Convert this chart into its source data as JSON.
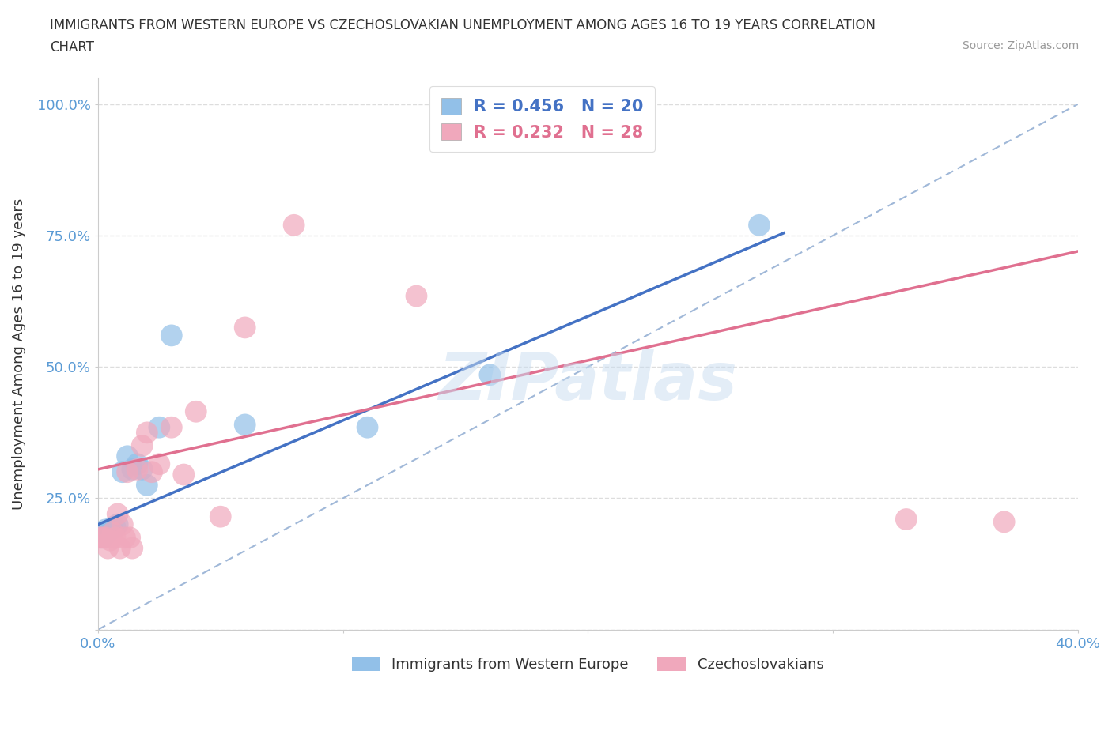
{
  "title_line1": "IMMIGRANTS FROM WESTERN EUROPE VS CZECHOSLOVAKIAN UNEMPLOYMENT AMONG AGES 16 TO 19 YEARS CORRELATION",
  "title_line2": "CHART",
  "source": "Source: ZipAtlas.com",
  "ylabel": "Unemployment Among Ages 16 to 19 years",
  "xlim": [
    0.0,
    0.4
  ],
  "ylim": [
    0.0,
    1.05
  ],
  "xticks": [
    0.0,
    0.1,
    0.2,
    0.3,
    0.4
  ],
  "xticklabels": [
    "0.0%",
    "",
    "",
    "",
    "40.0%"
  ],
  "yticks": [
    0.0,
    0.25,
    0.5,
    0.75,
    1.0
  ],
  "yticklabels": [
    "",
    "25.0%",
    "50.0%",
    "75.0%",
    "100.0%"
  ],
  "blue_color": "#92C0E8",
  "pink_color": "#F0A8BC",
  "blue_line_color": "#4472C4",
  "pink_line_color": "#E07090",
  "dashed_line_color": "#A0B8D8",
  "legend_r_blue": "R = 0.456",
  "legend_n_blue": "N = 20",
  "legend_r_pink": "R = 0.232",
  "legend_n_pink": "N = 28",
  "legend_label_blue": "Immigrants from Western Europe",
  "legend_label_pink": "Czechoslovakians",
  "blue_scatter_x": [
    0.001,
    0.002,
    0.003,
    0.004,
    0.005,
    0.006,
    0.007,
    0.008,
    0.01,
    0.012,
    0.014,
    0.016,
    0.018,
    0.02,
    0.025,
    0.03,
    0.06,
    0.11,
    0.16,
    0.27
  ],
  "blue_scatter_y": [
    0.175,
    0.175,
    0.19,
    0.185,
    0.19,
    0.195,
    0.195,
    0.2,
    0.3,
    0.33,
    0.305,
    0.315,
    0.305,
    0.275,
    0.385,
    0.56,
    0.39,
    0.385,
    0.485,
    0.77
  ],
  "pink_scatter_x": [
    0.001,
    0.002,
    0.003,
    0.004,
    0.005,
    0.006,
    0.007,
    0.008,
    0.009,
    0.01,
    0.011,
    0.012,
    0.013,
    0.014,
    0.016,
    0.018,
    0.02,
    0.022,
    0.025,
    0.03,
    0.035,
    0.04,
    0.05,
    0.06,
    0.08,
    0.13,
    0.33,
    0.37
  ],
  "pink_scatter_y": [
    0.175,
    0.175,
    0.175,
    0.155,
    0.17,
    0.185,
    0.175,
    0.22,
    0.155,
    0.2,
    0.175,
    0.3,
    0.175,
    0.155,
    0.305,
    0.35,
    0.375,
    0.3,
    0.315,
    0.385,
    0.295,
    0.415,
    0.215,
    0.575,
    0.77,
    0.635,
    0.21,
    0.205
  ],
  "blue_trend_x0": 0.0,
  "blue_trend_y0": 0.2,
  "blue_trend_x1": 0.28,
  "blue_trend_y1": 0.755,
  "pink_trend_x0": 0.0,
  "pink_trend_y0": 0.305,
  "pink_trend_x1": 0.4,
  "pink_trend_y1": 0.72,
  "watermark": "ZIPatlas",
  "background_color": "#FFFFFF",
  "grid_color": "#DDDDDD"
}
